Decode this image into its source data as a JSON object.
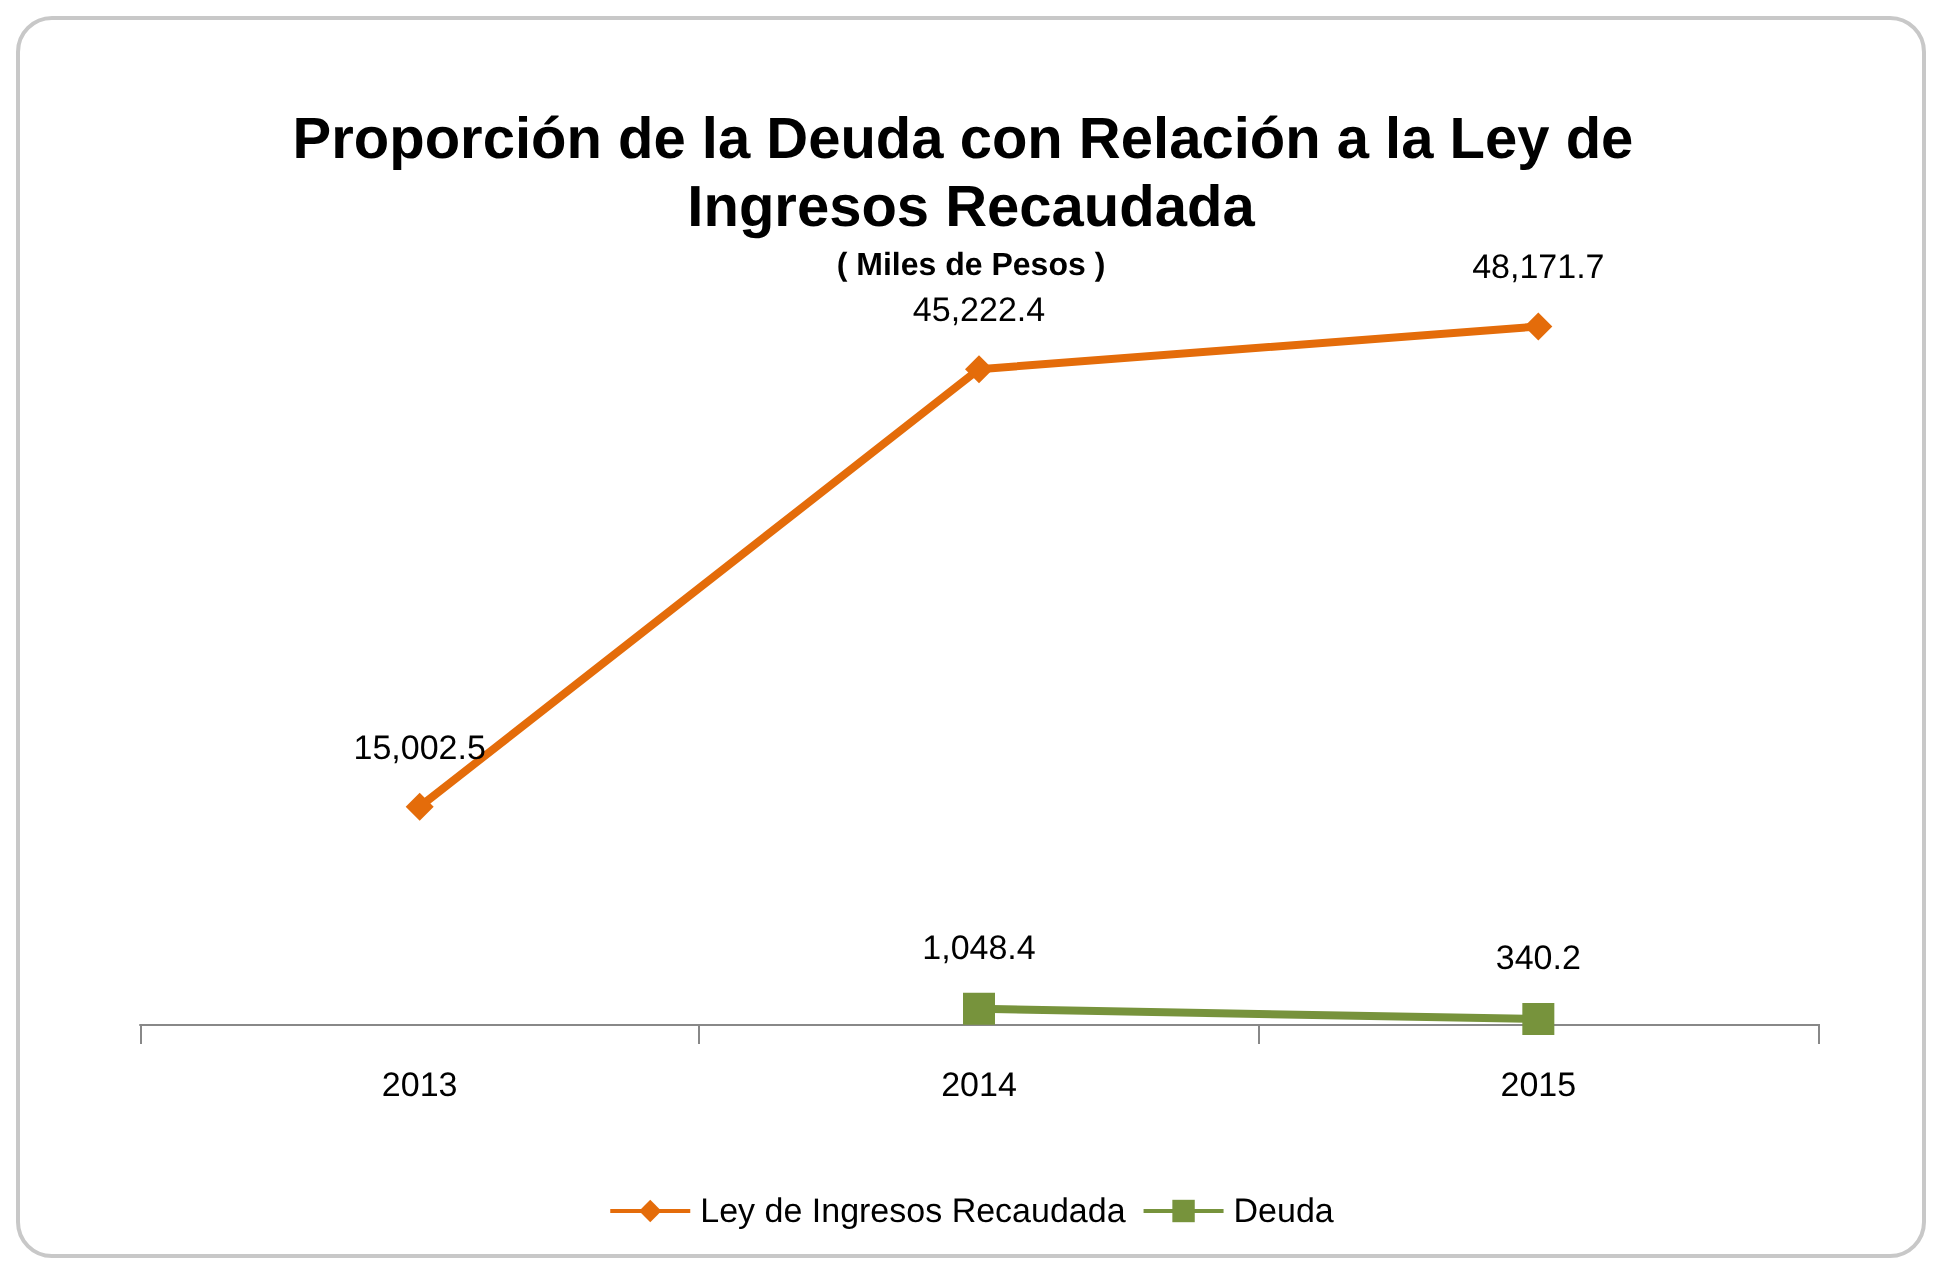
{
  "chart_data": {
    "type": "line",
    "title": "Proporción de la Deuda con Relación a la Ley de Ingresos Recaudada",
    "subtitle": "( Miles de Pesos )",
    "categories": [
      "2013",
      "2014",
      "2015"
    ],
    "series": [
      {
        "name": "Ley de Ingresos Recaudada",
        "color": "#e46c0a",
        "marker": "diamond",
        "values": [
          15002.5,
          45222.4,
          48171.7
        ],
        "value_labels": [
          "15,002.5",
          "45,222.4",
          "48,171.7"
        ]
      },
      {
        "name": "Deuda",
        "color": "#77933c",
        "marker": "square",
        "values": [
          null,
          1048.4,
          340.2
        ],
        "value_labels": [
          null,
          "1,048.4",
          "340.2"
        ]
      }
    ],
    "legend": "bottom",
    "grid": false
  }
}
